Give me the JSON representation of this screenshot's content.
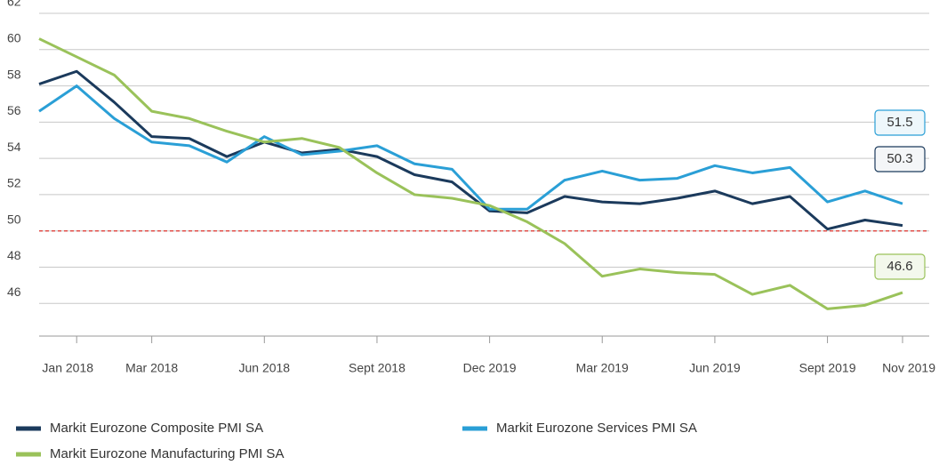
{
  "chart_data": {
    "type": "line",
    "categories": [
      null,
      "Jan 2018",
      null,
      "Mar 2018",
      null,
      null,
      "Jun 2018",
      null,
      null,
      "Sept 2018",
      null,
      null,
      "Dec 2019",
      null,
      null,
      "Mar 2019",
      null,
      null,
      "Jun 2019",
      null,
      null,
      "Sept 2019",
      null,
      "Nov 2019"
    ],
    "series": [
      {
        "name": "Markit Eurozone Composite PMI SA",
        "color": "#1b3a5c",
        "values": [
          58.1,
          58.8,
          57.1,
          55.2,
          55.1,
          54.1,
          54.9,
          54.3,
          54.5,
          54.1,
          53.1,
          52.7,
          51.1,
          51.0,
          51.9,
          51.6,
          51.5,
          51.8,
          52.2,
          51.5,
          51.9,
          50.1,
          50.6,
          50.3
        ]
      },
      {
        "name": "Markit Eurozone Services PMI SA",
        "color": "#2a9fd6",
        "values": [
          56.6,
          58.0,
          56.2,
          54.9,
          54.7,
          53.8,
          55.2,
          54.2,
          54.4,
          54.7,
          53.7,
          53.4,
          51.2,
          51.2,
          52.8,
          53.3,
          52.8,
          52.9,
          53.6,
          53.2,
          53.5,
          51.6,
          52.2,
          51.5
        ]
      },
      {
        "name": "Markit Eurozone Manufacturing PMI SA",
        "color": "#9ac25a",
        "values": [
          60.6,
          59.6,
          58.6,
          56.6,
          56.2,
          55.5,
          54.9,
          55.1,
          54.6,
          53.2,
          52.0,
          51.8,
          51.4,
          50.5,
          49.3,
          47.5,
          47.9,
          47.7,
          47.6,
          46.5,
          47.0,
          45.7,
          45.9,
          46.6
        ]
      }
    ],
    "ylim": [
      44.2,
      62
    ],
    "yticks": [
      46,
      48,
      50,
      52,
      54,
      56,
      58,
      60,
      62
    ],
    "grid": true,
    "reference_line": {
      "value": 50,
      "color": "#e0332b"
    }
  }
}
